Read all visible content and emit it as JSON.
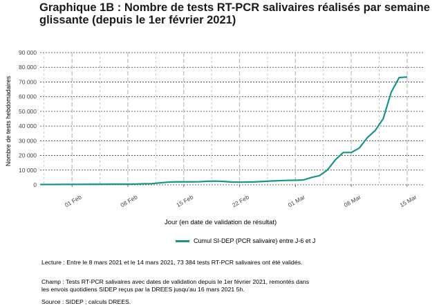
{
  "title": "Graphique 1B : Nombre de tests RT-PCR salivaires réalisés par semaine glissante (depuis le 1er février 2021)",
  "colors": {
    "series": "#17948a",
    "grid_h": "#333333",
    "grid_v": "#bfbfbf",
    "axis_text": "#444444"
  },
  "chart_data": {
    "type": "line",
    "xlabel": "Jour (en date de validation de résultat)",
    "ylabel": "Nombre de tests hebdomadaires",
    "ylim": [
      0,
      90000
    ],
    "yticks": [
      0,
      10000,
      20000,
      30000,
      40000,
      50000,
      60000,
      70000,
      80000,
      90000
    ],
    "ytick_labels": [
      "0",
      "10 000",
      "20 000",
      "30 000",
      "40 000",
      "50 000",
      "60 000",
      "70 000",
      "80 000",
      "90 000"
    ],
    "xlim": [
      "2021-01-28",
      "2021-03-17"
    ],
    "xticks": [
      "2021-02-01",
      "2021-02-08",
      "2021-02-15",
      "2021-02-22",
      "2021-03-01",
      "2021-03-08",
      "2021-03-15"
    ],
    "xtick_labels": [
      "01 Feb",
      "08 Feb",
      "15 Feb",
      "22 Feb",
      "01 Mar",
      "08 Mar",
      "15 Mar"
    ],
    "grid": true,
    "legend_position": "bottom",
    "series": [
      {
        "name": "Cumul SI-DEP (PCR salivaire) entre J-6 et J",
        "color": "#17948a",
        "x": [
          "2021-01-28",
          "2021-01-29",
          "2021-01-30",
          "2021-01-31",
          "2021-02-01",
          "2021-02-02",
          "2021-02-03",
          "2021-02-04",
          "2021-02-05",
          "2021-02-06",
          "2021-02-07",
          "2021-02-08",
          "2021-02-09",
          "2021-02-10",
          "2021-02-11",
          "2021-02-12",
          "2021-02-13",
          "2021-02-14",
          "2021-02-15",
          "2021-02-16",
          "2021-02-17",
          "2021-02-18",
          "2021-02-19",
          "2021-02-20",
          "2021-02-21",
          "2021-02-22",
          "2021-02-23",
          "2021-02-24",
          "2021-02-25",
          "2021-02-26",
          "2021-02-27",
          "2021-02-28",
          "2021-03-01",
          "2021-03-02",
          "2021-03-03",
          "2021-03-04",
          "2021-03-05",
          "2021-03-06",
          "2021-03-07",
          "2021-03-08",
          "2021-03-09",
          "2021-03-10",
          "2021-03-11",
          "2021-03-12",
          "2021-03-13",
          "2021-03-14",
          "2021-03-15"
        ],
        "y": [
          200,
          250,
          250,
          300,
          300,
          300,
          350,
          350,
          350,
          400,
          400,
          400,
          500,
          700,
          800,
          1300,
          1800,
          2000,
          2000,
          2000,
          2100,
          2400,
          2500,
          2300,
          1900,
          1800,
          1900,
          2000,
          2300,
          2600,
          2800,
          3000,
          3100,
          3300,
          5000,
          6200,
          10000,
          17000,
          22000,
          22000,
          25000,
          32000,
          37000,
          45000,
          63000,
          73000,
          73400
        ]
      }
    ]
  },
  "notes": {
    "lecture": "Lecture : Entre le 8 mars 2021 et le 14 mars 2021, 73 384 tests RT-PCR salivaires ont été validés.",
    "champ": "Champ : Tests RT-PCR salivaires avec dates de validation depuis le 1er février 2021, remontés dans les envois quotidiens SIDEP reçus par la DREES jusqu'au 16 mars 2021 5h.",
    "source": "Source : SIDEP ; calculs DREES."
  }
}
